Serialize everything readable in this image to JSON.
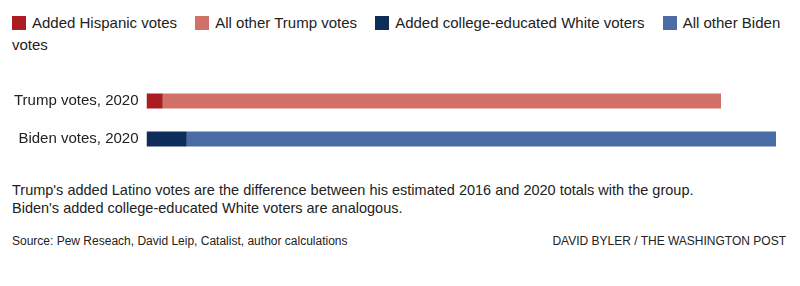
{
  "chart_data": {
    "type": "bar",
    "orientation": "horizontal",
    "stacked": true,
    "grid": false,
    "legend": "top-left",
    "tick_labels": "y",
    "categories": [
      "Trump votes, 2020",
      "Biden votes, 2020"
    ],
    "xlim": [
      0,
      81.3
    ],
    "series": [
      {
        "name": "Added Hispanic votes",
        "color": "#aa1e22",
        "values": [
          2.1,
          null
        ]
      },
      {
        "name": "All other Trump votes",
        "color": "#d2706a",
        "values": [
          72.1,
          null
        ]
      },
      {
        "name": "Added college-educated White voters",
        "color": "#0f2d5a",
        "values": [
          null,
          5.2
        ]
      },
      {
        "name": "All other Biden votes",
        "color": "#4a6ca6",
        "values": [
          null,
          76.1
        ]
      }
    ],
    "notes": [
      "Trump's added Latino votes are the difference between his estimated 2016 and 2020 totals with the group.",
      "Biden's added college-educated White voters are analogous."
    ],
    "source": "Source: Pew Reseach, David Leip, Catalist, author calculations",
    "credit": "DAVID BYLER / THE WASHINGTON POST"
  }
}
